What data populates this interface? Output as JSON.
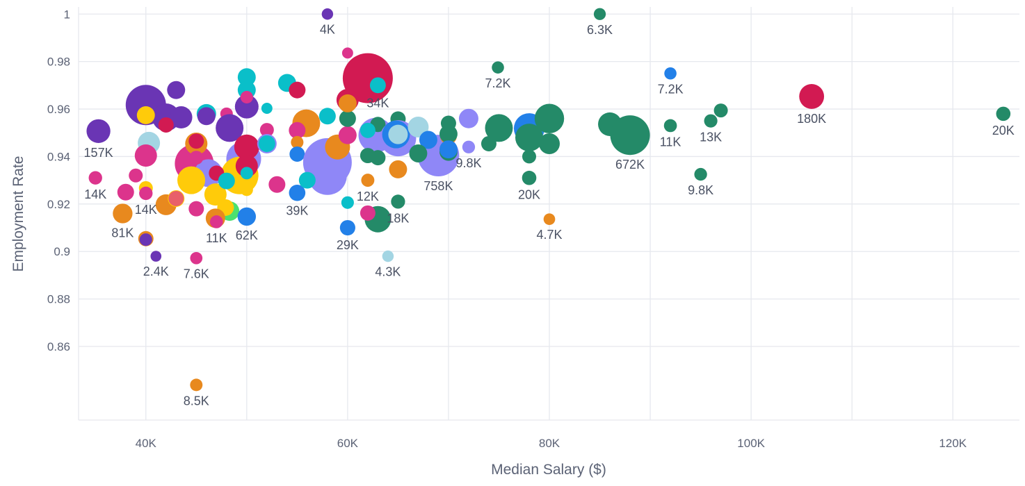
{
  "chart_data": {
    "type": "scatter",
    "subtype": "bubble",
    "title": "",
    "xlabel": "Median Salary ($)",
    "ylabel": "Employment Rate",
    "xlim": [
      33330,
      126600
    ],
    "ylim": [
      0.829,
      1.003
    ],
    "grid": true,
    "x_ticks": [
      40000,
      60000,
      80000,
      100000,
      120000
    ],
    "x_tick_labels": [
      "40K",
      "60K",
      "80K",
      "100K",
      "120K"
    ],
    "x_grid": [
      40000,
      50000,
      60000,
      70000,
      80000,
      90000,
      100000,
      110000,
      120000
    ],
    "y_ticks": [
      1,
      0.98,
      0.96,
      0.94,
      0.92,
      0.9,
      0.88,
      0.86
    ],
    "y_tick_labels": [
      "1",
      "0.98",
      "0.96",
      "0.94",
      "0.92",
      "0.9",
      "0.88",
      "0.86"
    ],
    "size_unit": "thousands",
    "colors": {
      "P": "#6a35b4",
      "G": "#248a68",
      "B": "#2280e8",
      "C": "#d21a52",
      "O": "#e8891e",
      "K": "#dc348c",
      "T": "#0abfc9",
      "L": "#a3d5e3",
      "V": "#8f87f7",
      "Y": "#ffcb0a",
      "N": "#4be070",
      "S": "#e8606a"
    },
    "points": [
      {
        "x": 40000,
        "y": 0.9617,
        "size": 700,
        "c": "P",
        "label": ""
      },
      {
        "x": 42000,
        "y": 0.9565,
        "size": 252,
        "c": "P",
        "label": ""
      },
      {
        "x": 43000,
        "y": 0.968,
        "size": 58,
        "c": "P",
        "label": ""
      },
      {
        "x": 43500,
        "y": 0.9565,
        "size": 125,
        "c": "P",
        "label": ""
      },
      {
        "x": 46000,
        "y": 0.958,
        "size": 78,
        "c": "T",
        "label": ""
      },
      {
        "x": 46000,
        "y": 0.957,
        "size": 58,
        "c": "P",
        "label": ""
      },
      {
        "x": 40000,
        "y": 0.9574,
        "size": 58,
        "c": "Y",
        "label": ""
      },
      {
        "x": 42000,
        "y": 0.9533,
        "size": 28,
        "c": "C",
        "label": ""
      },
      {
        "x": 40300,
        "y": 0.9457,
        "size": 125,
        "c": "L",
        "label": ""
      },
      {
        "x": 40000,
        "y": 0.9404,
        "size": 125,
        "c": "K",
        "label": ""
      },
      {
        "x": 35300,
        "y": 0.9507,
        "size": 157,
        "c": "P",
        "label": "157K"
      },
      {
        "x": 50000,
        "y": 0.9734,
        "size": 58,
        "c": "T",
        "label": ""
      },
      {
        "x": 50000,
        "y": 0.968,
        "size": 58,
        "c": "T",
        "label": ""
      },
      {
        "x": 50000,
        "y": 0.961,
        "size": 153,
        "c": "P",
        "label": ""
      },
      {
        "x": 50000,
        "y": 0.965,
        "size": 9,
        "c": "K",
        "label": ""
      },
      {
        "x": 52000,
        "y": 0.9603,
        "size": 3,
        "c": "T",
        "label": ""
      },
      {
        "x": 48000,
        "y": 0.958,
        "size": 9,
        "c": "K",
        "label": ""
      },
      {
        "x": 48300,
        "y": 0.952,
        "size": 252,
        "c": "P",
        "label": ""
      },
      {
        "x": 44800,
        "y": 0.937,
        "size": 640,
        "c": "K",
        "label": ""
      },
      {
        "x": 46200,
        "y": 0.933,
        "size": 252,
        "c": "V",
        "label": ""
      },
      {
        "x": 49700,
        "y": 0.939,
        "size": 474,
        "c": "V",
        "label": ""
      },
      {
        "x": 49300,
        "y": 0.932,
        "size": 582,
        "c": "Y",
        "label": ""
      },
      {
        "x": 44500,
        "y": 0.93,
        "size": 252,
        "c": "Y",
        "label": ""
      },
      {
        "x": 48300,
        "y": 0.917,
        "size": 78,
        "c": "N",
        "label": ""
      },
      {
        "x": 45000,
        "y": 0.9454,
        "size": 125,
        "c": "O",
        "label": ""
      },
      {
        "x": 45000,
        "y": 0.9465,
        "size": 28,
        "c": "C",
        "label": ""
      },
      {
        "x": 45000,
        "y": 0.9395,
        "size": 17,
        "c": "K",
        "label": ""
      },
      {
        "x": 42000,
        "y": 0.9197,
        "size": 100,
        "c": "O",
        "label": ""
      },
      {
        "x": 40000,
        "y": 0.9267,
        "size": 17,
        "c": "Y",
        "label": ""
      },
      {
        "x": 43000,
        "y": 0.9223,
        "size": 42,
        "c": "Y",
        "label": ""
      },
      {
        "x": 43000,
        "y": 0.9223,
        "size": 28,
        "c": "S",
        "label": ""
      },
      {
        "x": 39000,
        "y": 0.932,
        "size": 17,
        "c": "K",
        "label": ""
      },
      {
        "x": 38000,
        "y": 0.925,
        "size": 42,
        "c": "K",
        "label": ""
      },
      {
        "x": 35000,
        "y": 0.931,
        "size": 14,
        "c": "K",
        "label": "14K"
      },
      {
        "x": 40000,
        "y": 0.9245,
        "size": 14,
        "c": "K",
        "label": "14K"
      },
      {
        "x": 37700,
        "y": 0.916,
        "size": 81,
        "c": "O",
        "label": "81K"
      },
      {
        "x": 46900,
        "y": 0.924,
        "size": 125,
        "c": "Y",
        "label": ""
      },
      {
        "x": 47900,
        "y": 0.9185,
        "size": 42,
        "c": "Y",
        "label": ""
      },
      {
        "x": 45000,
        "y": 0.918,
        "size": 28,
        "c": "K",
        "label": ""
      },
      {
        "x": 46900,
        "y": 0.914,
        "size": 78,
        "c": "O",
        "label": ""
      },
      {
        "x": 47000,
        "y": 0.9125,
        "size": 11,
        "c": "K",
        "label": "11K"
      },
      {
        "x": 47000,
        "y": 0.933,
        "size": 28,
        "c": "C",
        "label": ""
      },
      {
        "x": 48000,
        "y": 0.9297,
        "size": 42,
        "c": "T",
        "label": ""
      },
      {
        "x": 50000,
        "y": 0.944,
        "size": 183,
        "c": "C",
        "label": ""
      },
      {
        "x": 50000,
        "y": 0.936,
        "size": 125,
        "c": "C",
        "label": ""
      },
      {
        "x": 50000,
        "y": 0.933,
        "size": 9,
        "c": "T",
        "label": ""
      },
      {
        "x": 50000,
        "y": 0.926,
        "size": 9,
        "c": "Y",
        "label": ""
      },
      {
        "x": 50000,
        "y": 0.9147,
        "size": 62,
        "c": "B",
        "label": "62K"
      },
      {
        "x": 53000,
        "y": 0.9282,
        "size": 42,
        "c": "K",
        "label": ""
      },
      {
        "x": 52000,
        "y": 0.9512,
        "size": 17,
        "c": "K",
        "label": ""
      },
      {
        "x": 52000,
        "y": 0.9454,
        "size": 78,
        "c": "V",
        "label": ""
      },
      {
        "x": 52000,
        "y": 0.9454,
        "size": 42,
        "c": "T",
        "label": ""
      },
      {
        "x": 54000,
        "y": 0.971,
        "size": 58,
        "c": "T",
        "label": ""
      },
      {
        "x": 55000,
        "y": 0.968,
        "size": 42,
        "c": "C",
        "label": ""
      },
      {
        "x": 55900,
        "y": 0.954,
        "size": 252,
        "c": "O",
        "label": ""
      },
      {
        "x": 55000,
        "y": 0.951,
        "size": 42,
        "c": "K",
        "label": ""
      },
      {
        "x": 55000,
        "y": 0.946,
        "size": 9,
        "c": "O",
        "label": ""
      },
      {
        "x": 55000,
        "y": 0.941,
        "size": 28,
        "c": "B",
        "label": ""
      },
      {
        "x": 55000,
        "y": 0.9247,
        "size": 39,
        "c": "B",
        "label": "39K"
      },
      {
        "x": 58000,
        "y": 0.9375,
        "size": 1124,
        "c": "V",
        "label": ""
      },
      {
        "x": 58000,
        "y": 0.932,
        "size": 640,
        "c": "V",
        "label": ""
      },
      {
        "x": 56000,
        "y": 0.93,
        "size": 42,
        "c": "T",
        "label": ""
      },
      {
        "x": 59000,
        "y": 0.944,
        "size": 183,
        "c": "O",
        "label": ""
      },
      {
        "x": 60000,
        "y": 0.949,
        "size": 58,
        "c": "K",
        "label": ""
      },
      {
        "x": 58000,
        "y": 0.957,
        "size": 42,
        "c": "T",
        "label": ""
      },
      {
        "x": 60000,
        "y": 0.956,
        "size": 42,
        "c": "G",
        "label": ""
      },
      {
        "x": 62000,
        "y": 0.973,
        "size": 1204,
        "c": "C",
        "label": ""
      },
      {
        "x": 60000,
        "y": 0.9638,
        "size": 125,
        "c": "C",
        "label": ""
      },
      {
        "x": 60000,
        "y": 0.9624,
        "size": 58,
        "c": "O",
        "label": ""
      },
      {
        "x": 60000,
        "y": 0.9836,
        "size": 3,
        "c": "K",
        "label": ""
      },
      {
        "x": 63000,
        "y": 0.97,
        "size": 34,
        "c": "T",
        "label": "34K"
      },
      {
        "x": 58000,
        "y": 1.0,
        "size": 4,
        "c": "P",
        "label": "4K"
      },
      {
        "x": 62800,
        "y": 0.949,
        "size": 474,
        "c": "V",
        "label": ""
      },
      {
        "x": 63000,
        "y": 0.9535,
        "size": 28,
        "c": "G",
        "label": ""
      },
      {
        "x": 65000,
        "y": 0.9558,
        "size": 28,
        "c": "G",
        "label": ""
      },
      {
        "x": 62000,
        "y": 0.951,
        "size": 28,
        "c": "T",
        "label": ""
      },
      {
        "x": 62000,
        "y": 0.9404,
        "size": 28,
        "c": "G",
        "label": ""
      },
      {
        "x": 63000,
        "y": 0.9395,
        "size": 28,
        "c": "G",
        "label": ""
      },
      {
        "x": 62000,
        "y": 0.93,
        "size": 12,
        "c": "O",
        "label": "12K"
      },
      {
        "x": 65000,
        "y": 0.9346,
        "size": 58,
        "c": "O",
        "label": ""
      },
      {
        "x": 65000,
        "y": 0.9477,
        "size": 526,
        "c": "V",
        "label": ""
      },
      {
        "x": 64800,
        "y": 0.9493,
        "size": 252,
        "c": "B",
        "label": ""
      },
      {
        "x": 65000,
        "y": 0.9493,
        "size": 78,
        "c": "L",
        "label": ""
      },
      {
        "x": 67000,
        "y": 0.9524,
        "size": 100,
        "c": "L",
        "label": ""
      },
      {
        "x": 69000,
        "y": 0.9404,
        "size": 758,
        "c": "V",
        "label": "758K"
      },
      {
        "x": 68000,
        "y": 0.947,
        "size": 58,
        "c": "B",
        "label": ""
      },
      {
        "x": 67000,
        "y": 0.9413,
        "size": 58,
        "c": "G",
        "label": ""
      },
      {
        "x": 70000,
        "y": 0.9486,
        "size": 42,
        "c": "O",
        "label": ""
      },
      {
        "x": 70000,
        "y": 0.954,
        "size": 28,
        "c": "G",
        "label": ""
      },
      {
        "x": 70000,
        "y": 0.9495,
        "size": 58,
        "c": "G",
        "label": ""
      },
      {
        "x": 70000,
        "y": 0.942,
        "size": 58,
        "c": "G",
        "label": ""
      },
      {
        "x": 70000,
        "y": 0.943,
        "size": 58,
        "c": "B",
        "label": ""
      },
      {
        "x": 72000,
        "y": 0.956,
        "size": 78,
        "c": "V",
        "label": ""
      },
      {
        "x": 72000,
        "y": 0.944,
        "size": 9.8,
        "c": "V",
        "label": "9.8K"
      },
      {
        "x": 74000,
        "y": 0.9454,
        "size": 28,
        "c": "G",
        "label": ""
      },
      {
        "x": 75000,
        "y": 0.952,
        "size": 252,
        "c": "G",
        "label": ""
      },
      {
        "x": 74900,
        "y": 0.9775,
        "size": 7.2,
        "c": "G",
        "label": "7.2K"
      },
      {
        "x": 78000,
        "y": 0.9518,
        "size": 333,
        "c": "B",
        "label": ""
      },
      {
        "x": 78000,
        "y": 0.948,
        "size": 252,
        "c": "G",
        "label": ""
      },
      {
        "x": 80000,
        "y": 0.956,
        "size": 300,
        "c": "G",
        "label": ""
      },
      {
        "x": 80000,
        "y": 0.9454,
        "size": 100,
        "c": "G",
        "label": ""
      },
      {
        "x": 78000,
        "y": 0.94,
        "size": 17,
        "c": "G",
        "label": ""
      },
      {
        "x": 78000,
        "y": 0.931,
        "size": 20,
        "c": "G",
        "label": "20K"
      },
      {
        "x": 80000,
        "y": 0.9136,
        "size": 4.7,
        "c": "O",
        "label": "4.7K"
      },
      {
        "x": 85000,
        "y": 1.0,
        "size": 6.3,
        "c": "G",
        "label": "6.3K"
      },
      {
        "x": 86000,
        "y": 0.9536,
        "size": 153,
        "c": "G",
        "label": ""
      },
      {
        "x": 88000,
        "y": 0.949,
        "size": 672,
        "c": "G",
        "label": "672K"
      },
      {
        "x": 92000,
        "y": 0.975,
        "size": 7.2,
        "c": "B",
        "label": "7.2K"
      },
      {
        "x": 92000,
        "y": 0.953,
        "size": 11,
        "c": "G",
        "label": "11K"
      },
      {
        "x": 95000,
        "y": 0.9325,
        "size": 9.8,
        "c": "G",
        "label": "9.8K"
      },
      {
        "x": 97000,
        "y": 0.9594,
        "size": 17,
        "c": "G",
        "label": ""
      },
      {
        "x": 96000,
        "y": 0.955,
        "size": 13,
        "c": "G",
        "label": "13K"
      },
      {
        "x": 106000,
        "y": 0.9653,
        "size": 180,
        "c": "C",
        "label": "180K"
      },
      {
        "x": 125000,
        "y": 0.958,
        "size": 20,
        "c": "G",
        "label": "20K"
      },
      {
        "x": 63000,
        "y": 0.9136,
        "size": 216,
        "c": "G",
        "label": ""
      },
      {
        "x": 62000,
        "y": 0.9162,
        "size": 28,
        "c": "K",
        "label": ""
      },
      {
        "x": 65000,
        "y": 0.921,
        "size": 18,
        "c": "G",
        "label": "18K"
      },
      {
        "x": 60000,
        "y": 0.9206,
        "size": 9,
        "c": "T",
        "label": ""
      },
      {
        "x": 60000,
        "y": 0.91,
        "size": 29,
        "c": "B",
        "label": "29K"
      },
      {
        "x": 64000,
        "y": 0.898,
        "size": 4.3,
        "c": "L",
        "label": "4.3K"
      },
      {
        "x": 40000,
        "y": 0.9054,
        "size": 28,
        "c": "O",
        "label": ""
      },
      {
        "x": 40000,
        "y": 0.905,
        "size": 9,
        "c": "P",
        "label": ""
      },
      {
        "x": 41000,
        "y": 0.898,
        "size": 2.4,
        "c": "P",
        "label": "2.4K"
      },
      {
        "x": 45000,
        "y": 0.8972,
        "size": 7.6,
        "c": "K",
        "label": "7.6K"
      },
      {
        "x": 45000,
        "y": 0.8438,
        "size": 8.5,
        "c": "O",
        "label": "8.5K"
      }
    ]
  }
}
